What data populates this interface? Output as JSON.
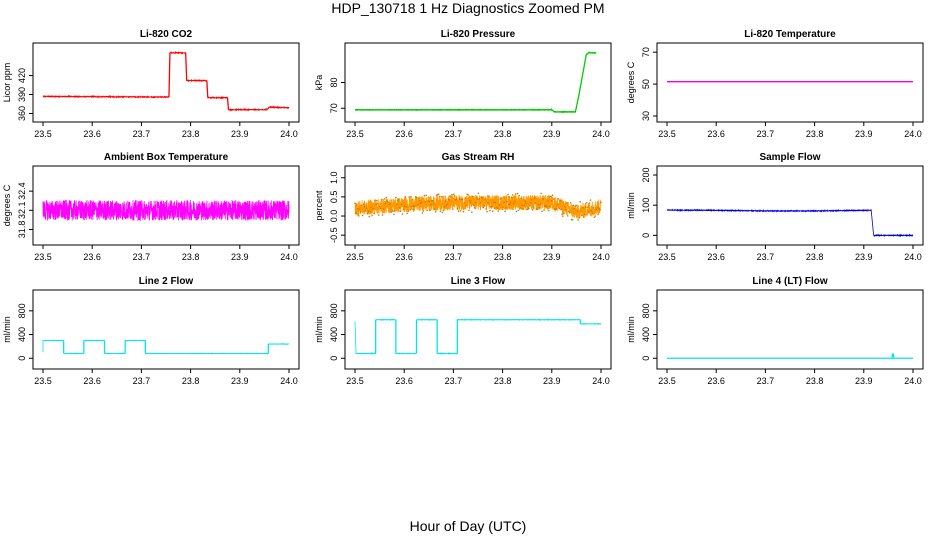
{
  "figure": {
    "title": "HDP_130718  1 Hz Diagnostics Zoomed PM",
    "xlabel": "Hour of Day (UTC)"
  },
  "chart_data": [
    {
      "type": "line",
      "title": "Li-820 CO2",
      "ylabel": "Licor ppm",
      "color": "#ff0000",
      "xlim": [
        23.5,
        24.0
      ],
      "ylim": [
        356,
        462
      ],
      "yticks": [
        360,
        390,
        420
      ],
      "xticks": [
        23.5,
        23.6,
        23.7,
        23.8,
        23.9,
        24.0
      ],
      "noise": 0.6,
      "series": [
        {
          "x": [
            23.5,
            23.756
          ],
          "y": [
            387,
            386
          ]
        },
        {
          "x": [
            23.758,
            23.79
          ],
          "y": [
            456,
            456
          ]
        },
        {
          "x": [
            23.792,
            23.833
          ],
          "y": [
            412,
            412
          ]
        },
        {
          "x": [
            23.835,
            23.875
          ],
          "y": [
            385,
            385
          ]
        },
        {
          "x": [
            23.877,
            23.955
          ],
          "y": [
            366,
            366
          ]
        },
        {
          "x": [
            23.96,
            24.0
          ],
          "y": [
            370,
            369
          ]
        }
      ]
    },
    {
      "type": "line",
      "title": "Li-820 Pressure",
      "ylabel": "kPa",
      "color": "#00cc00",
      "xlim": [
        23.5,
        24.0
      ],
      "ylim": [
        67,
        93
      ],
      "yticks": [
        70,
        80
      ],
      "xticks": [
        23.5,
        23.6,
        23.7,
        23.8,
        23.9,
        24.0
      ],
      "noise": 0.05,
      "series": [
        {
          "x": [
            23.5,
            23.9,
            23.905,
            23.948,
            23.955,
            23.97,
            23.975,
            23.99
          ],
          "y": [
            69.4,
            69.4,
            68.6,
            68.6,
            75,
            90.8,
            91.5,
            91.5
          ]
        }
      ]
    },
    {
      "type": "line",
      "title": "Li-820 Temperature",
      "ylabel": "degrees C",
      "color": "#ee00ee",
      "xlim": [
        23.5,
        24.0
      ],
      "ylim": [
        30,
        72
      ],
      "yticks": [
        30,
        50,
        70
      ],
      "xticks": [
        23.5,
        23.6,
        23.7,
        23.8,
        23.9,
        24.0
      ],
      "noise": 0,
      "series": [
        {
          "x": [
            23.5,
            24.0
          ],
          "y": [
            51.5,
            51.5
          ]
        }
      ]
    },
    {
      "type": "line",
      "title": "Ambient Box Temperature",
      "ylabel": "degrees C",
      "color": "#ff00ff",
      "xlim": [
        23.5,
        24.0
      ],
      "ylim": [
        31.65,
        32.7
      ],
      "yticks": [
        31.8,
        32.1,
        32.4
      ],
      "xticks": [
        23.5,
        23.6,
        23.7,
        23.8,
        23.9,
        24.0
      ],
      "noise": 0.16,
      "series": [
        {
          "x": [
            23.5,
            24.0
          ],
          "y": [
            32.1,
            32.1
          ]
        }
      ]
    },
    {
      "type": "line",
      "title": "Gas Stream RH",
      "ylabel": "percent",
      "color": "#ff9900",
      "xlim": [
        23.5,
        24.0
      ],
      "ylim": [
        -0.6,
        1.15
      ],
      "yticks": [
        -0.5,
        0.0,
        0.5,
        1.0
      ],
      "xticks": [
        23.5,
        23.6,
        23.7,
        23.8,
        23.9,
        24.0
      ],
      "noise": 0.2,
      "series": [
        {
          "x": [
            23.5,
            23.6,
            23.7,
            23.8,
            23.9,
            23.95,
            24.0
          ],
          "y": [
            0.2,
            0.3,
            0.35,
            0.35,
            0.35,
            0.1,
            0.25
          ]
        }
      ]
    },
    {
      "type": "line",
      "title": "Sample Flow",
      "ylabel": "ml/min",
      "color": "#0000dd",
      "xlim": [
        23.5,
        24.0
      ],
      "ylim": [
        -12,
        210
      ],
      "yticks": [
        0,
        100,
        200
      ],
      "xticks": [
        23.5,
        23.6,
        23.7,
        23.8,
        23.9,
        24.0
      ],
      "noise": 1.2,
      "series": [
        {
          "x": [
            23.5,
            23.6,
            23.7,
            23.8,
            23.9,
            23.915,
            23.92,
            24.0
          ],
          "y": [
            84,
            83,
            81,
            81,
            83,
            83,
            0,
            0
          ]
        }
      ]
    },
    {
      "type": "line",
      "title": "Line 2 Flow",
      "ylabel": "ml/min",
      "color": "#00e5ee",
      "xlim": [
        23.5,
        24.0
      ],
      "ylim": [
        -80,
        1050
      ],
      "yticks": [
        0,
        400,
        800
      ],
      "xticks": [
        23.5,
        23.6,
        23.7,
        23.8,
        23.9,
        24.0
      ],
      "noise": 3,
      "series": [
        {
          "x": [
            23.5,
            23.5,
            23.542
          ],
          "y": [
            100,
            300,
            300
          ]
        },
        {
          "x": [
            23.542,
            23.583
          ],
          "y": [
            80,
            80
          ]
        },
        {
          "x": [
            23.583,
            23.625
          ],
          "y": [
            300,
            300
          ]
        },
        {
          "x": [
            23.625,
            23.667
          ],
          "y": [
            80,
            80
          ]
        },
        {
          "x": [
            23.667,
            23.708
          ],
          "y": [
            300,
            300
          ]
        },
        {
          "x": [
            23.708,
            23.958
          ],
          "y": [
            80,
            80
          ]
        },
        {
          "x": [
            23.958,
            24.0
          ],
          "y": [
            240,
            240
          ]
        }
      ]
    },
    {
      "type": "line",
      "title": "Line 3 Flow",
      "ylabel": "ml/min",
      "color": "#00e5ee",
      "xlim": [
        23.5,
        24.0
      ],
      "ylim": [
        -80,
        1050
      ],
      "yticks": [
        0,
        400,
        800
      ],
      "xticks": [
        23.5,
        23.6,
        23.7,
        23.8,
        23.9,
        24.0
      ],
      "noise": 4,
      "series": [
        {
          "x": [
            23.5,
            23.5,
            23.502
          ],
          "y": [
            620,
            620,
            100
          ]
        },
        {
          "x": [
            23.502,
            23.542
          ],
          "y": [
            80,
            80
          ]
        },
        {
          "x": [
            23.542,
            23.583
          ],
          "y": [
            650,
            650
          ]
        },
        {
          "x": [
            23.583,
            23.625
          ],
          "y": [
            80,
            80
          ]
        },
        {
          "x": [
            23.625,
            23.667
          ],
          "y": [
            650,
            650
          ]
        },
        {
          "x": [
            23.667,
            23.708
          ],
          "y": [
            80,
            80
          ]
        },
        {
          "x": [
            23.708,
            23.958
          ],
          "y": [
            650,
            650
          ]
        },
        {
          "x": [
            23.958,
            24.0
          ],
          "y": [
            580,
            580
          ]
        }
      ]
    },
    {
      "type": "line",
      "title": "Line 4 (LT) Flow",
      "ylabel": "ml/min",
      "color": "#00e5ee",
      "xlim": [
        23.5,
        24.0
      ],
      "ylim": [
        -80,
        1050
      ],
      "yticks": [
        0,
        400,
        800
      ],
      "xticks": [
        23.5,
        23.6,
        23.7,
        23.8,
        23.9,
        24.0
      ],
      "noise": 0,
      "series": [
        {
          "x": [
            23.5,
            23.958,
            23.958,
            23.96,
            23.961,
            24.0
          ],
          "y": [
            0,
            0,
            70,
            70,
            0,
            0
          ]
        }
      ]
    }
  ]
}
